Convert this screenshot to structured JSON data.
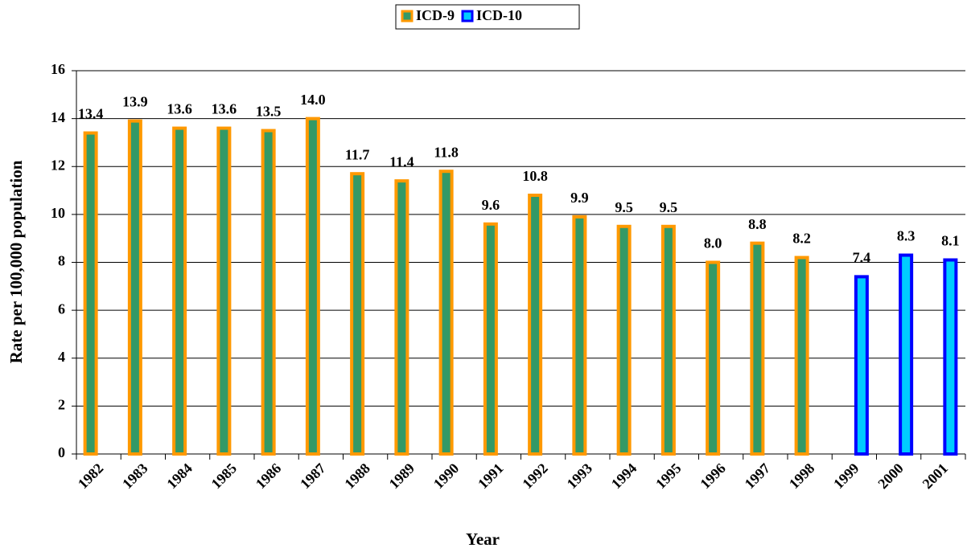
{
  "chart_data": {
    "type": "bar",
    "xlabel": "Year",
    "ylabel": "Rate per 100,000 population",
    "categories": [
      "1982",
      "1983",
      "1984",
      "1985",
      "1986",
      "1987",
      "1988",
      "1989",
      "1990",
      "1991",
      "1992",
      "1993",
      "1994",
      "1995",
      "1996",
      "1997",
      "1998",
      "1999",
      "2000",
      "2001"
    ],
    "series": [
      {
        "name": "ICD-9",
        "color": "#339966",
        "edgecolor": "#ff9900",
        "values": [
          13.4,
          13.9,
          13.6,
          13.6,
          13.5,
          14.0,
          11.7,
          11.4,
          11.8,
          9.6,
          10.8,
          9.9,
          9.5,
          9.5,
          8.0,
          8.8,
          8.2,
          null,
          null,
          null
        ],
        "value_labels": [
          "13.4",
          "13.9",
          "13.6",
          "13.6",
          "13.5",
          "14.0",
          "11.7",
          "11.4",
          "11.8",
          "9.6",
          "10.8",
          "9.9",
          "9.5",
          "9.5",
          "8.0",
          "8.8",
          "8.2",
          null,
          null,
          null
        ]
      },
      {
        "name": "ICD-10",
        "color": "#00ccff",
        "edgecolor": "#0000ff",
        "values": [
          null,
          null,
          null,
          null,
          null,
          null,
          null,
          null,
          null,
          null,
          null,
          null,
          null,
          null,
          null,
          null,
          null,
          7.4,
          8.3,
          8.1
        ],
        "value_labels": [
          null,
          null,
          null,
          null,
          null,
          null,
          null,
          null,
          null,
          null,
          null,
          null,
          null,
          null,
          null,
          null,
          null,
          "7.4",
          "8.3",
          "8.1"
        ]
      }
    ],
    "ylim": [
      0,
      16
    ],
    "yticks": [
      0,
      2,
      4,
      6,
      8,
      10,
      12,
      14,
      16
    ],
    "grid": true,
    "legend": "top"
  }
}
